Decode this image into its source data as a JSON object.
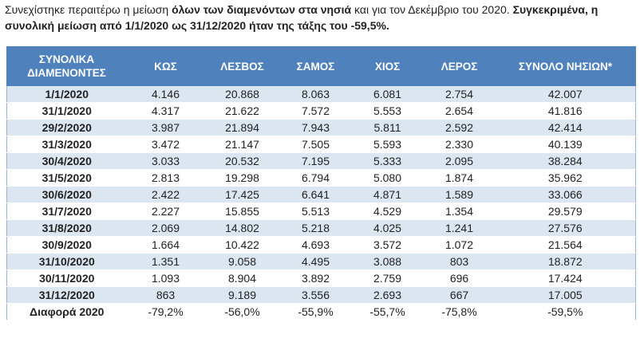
{
  "intro": [
    {
      "text": "Συνεχίστηκε περαιτέρω η μείωση ",
      "bold": false
    },
    {
      "text": "όλων των διαμενόντων στα νησιά",
      "bold": true
    },
    {
      "text": " και για τον Δεκέμβριο του 2020. ",
      "bold": false
    },
    {
      "text": "Συγκεκριμένα, η συνολική μείωση από 1/1/2020 ως 31/12/2020 ήταν της τάξης του -59,5%.",
      "bold": true
    }
  ],
  "table": {
    "header": [
      "ΣΥΝΟΛΙΚΑ ΔΙΑΜΕΝΟΝΤΕΣ",
      "ΚΩΣ",
      "ΛΕΣΒΟΣ",
      "ΣΑΜΟΣ",
      "ΧΙΟΣ",
      "ΛΕΡΟΣ",
      "ΣΥΝΟΛΟ ΝΗΣΙΩΝ*"
    ],
    "rows": [
      [
        "1/1/2020",
        "4.146",
        "20.868",
        "8.063",
        "6.081",
        "2.754",
        "42.007"
      ],
      [
        "31/1/2020",
        "4.317",
        "21.622",
        "7.572",
        "5.553",
        "2.654",
        "41.816"
      ],
      [
        "29/2/2020",
        "3.987",
        "21.894",
        "7.943",
        "5.811",
        "2.592",
        "42.414"
      ],
      [
        "31/3/2020",
        "3.472",
        "21.147",
        "7.505",
        "5.593",
        "2.330",
        "40.139"
      ],
      [
        "30/4/2020",
        "3.033",
        "20.532",
        "7.195",
        "5.333",
        "2.095",
        "38.284"
      ],
      [
        "31/5/2020",
        "2.813",
        "19.298",
        "6.794",
        "5.080",
        "1.874",
        "35.962"
      ],
      [
        "30/6/2020",
        "2.422",
        "17.425",
        "6.641",
        "4.871",
        "1.589",
        "33.066"
      ],
      [
        "31/7/2020",
        "2.227",
        "15.855",
        "5.513",
        "4.529",
        "1.354",
        "29.579"
      ],
      [
        "31/8/2020",
        "2.069",
        "14.802",
        "5.218",
        "4.025",
        "1.241",
        "27.576"
      ],
      [
        "30/9/2020",
        "1.664",
        "10.422",
        "4.693",
        "3.572",
        "1.072",
        "21.564"
      ],
      [
        "31/10/2020",
        "1.351",
        "9.058",
        "4.495",
        "3.088",
        "803",
        "18.872"
      ],
      [
        "30/11/2020",
        "1.093",
        "8.904",
        "3.892",
        "2.759",
        "696",
        "17.424"
      ],
      [
        "31/12/2020",
        "863",
        "9.189",
        "3.556",
        "2.693",
        "667",
        "17.005"
      ],
      [
        "Διαφορά 2020",
        "-79,2%",
        "-56,0%",
        "-55,9%",
        "-55,7%",
        "-75,8%",
        "-59,5%"
      ]
    ]
  }
}
